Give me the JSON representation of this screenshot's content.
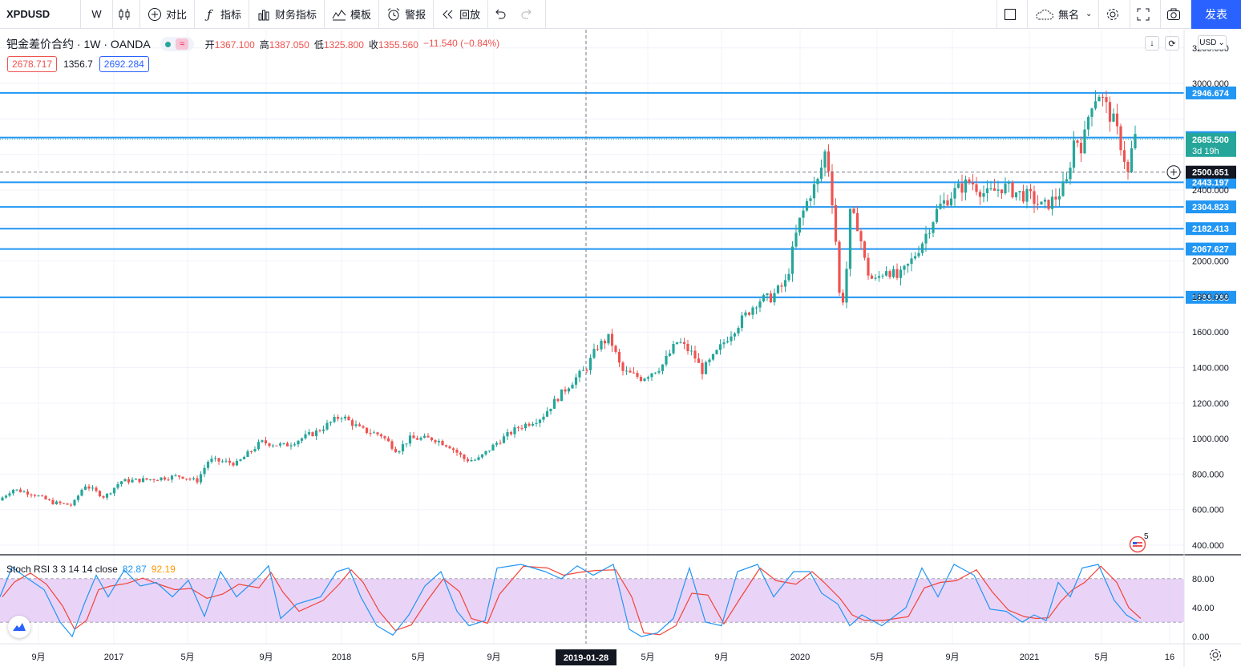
{
  "toolbar": {
    "symbol": "XPDUSD",
    "interval": "W",
    "compare": "对比",
    "indicators": "指标",
    "financials": "财务指标",
    "templates": "模板",
    "alert": "警报",
    "replay": "回放",
    "layout_name": "無名",
    "publish": "发表"
  },
  "legend": {
    "name": "钯金差价合约 · 1W · OANDA",
    "open_label": "开",
    "open": "1367.100",
    "high_label": "高",
    "high": "1387.050",
    "low_label": "低",
    "low": "1325.800",
    "close_label": "收",
    "close": "1355.560",
    "change": "−11.540 (−0.84%)",
    "bid": "2678.717",
    "spread": "1356.7",
    "ask": "2692.284"
  },
  "currency": "USD",
  "indicator": {
    "label": "Stoch RSI 3 3 14 14 close",
    "k_value": "82.87",
    "d_value": "92.19",
    "levels": {
      "upper": 80,
      "lower": 20
    }
  },
  "colors": {
    "up": "#26a69a",
    "down": "#ef5350",
    "hline": "#2196f3",
    "stoch_k": "#2196f3",
    "stoch_d": "#f44336",
    "band": "#e1c5f5"
  },
  "alert_count": "5",
  "crosshair_date": "2019-01-28",
  "chart_data": {
    "type": "candlestick",
    "price_axis": {
      "labels": [
        "400.000",
        "600.000",
        "800.000",
        "1000.000",
        "1200.000",
        "1400.000",
        "1600.000",
        "1800.000",
        "2000.000",
        "2400.000",
        "3000.000",
        "3200.000"
      ],
      "range": [
        300,
        3260
      ]
    },
    "time_axis": [
      "9月",
      "2017",
      "5月",
      "9月",
      "2018",
      "5月",
      "9月",
      "2019-01-28",
      "5月",
      "9月",
      "2020",
      "5月",
      "9月",
      "2021",
      "5月",
      "16"
    ],
    "horizontal_lines": [
      "2946.674",
      "2694.930",
      "2443.197",
      "2304.823",
      "2182.413",
      "2067.627",
      "1795.786"
    ],
    "current_price": {
      "value": "2685.500",
      "countdown": "3d 19h"
    },
    "crosshair_price": "2500.651",
    "stoch_axis": [
      "80.00",
      "40.00",
      "0.00"
    ],
    "trend": [
      [
        0,
        640
      ],
      [
        20,
        715
      ],
      [
        45,
        690
      ],
      [
        70,
        640
      ],
      [
        95,
        625
      ],
      [
        110,
        740
      ],
      [
        135,
        670
      ],
      [
        155,
        760
      ],
      [
        190,
        770
      ],
      [
        230,
        790
      ],
      [
        250,
        760
      ],
      [
        265,
        880
      ],
      [
        300,
        860
      ],
      [
        330,
        980
      ],
      [
        360,
        960
      ],
      [
        400,
        1040
      ],
      [
        430,
        1130
      ],
      [
        455,
        1050
      ],
      [
        480,
        1020
      ],
      [
        500,
        930
      ],
      [
        515,
        1000
      ],
      [
        545,
        1000
      ],
      [
        565,
        960
      ],
      [
        585,
        880
      ],
      [
        600,
        880
      ],
      [
        625,
        980
      ],
      [
        650,
        1060
      ],
      [
        680,
        1120
      ],
      [
        700,
        1230
      ],
      [
        720,
        1330
      ],
      [
        735,
        1390
      ],
      [
        750,
        1520
      ],
      [
        765,
        1570
      ],
      [
        780,
        1380
      ],
      [
        805,
        1340
      ],
      [
        830,
        1410
      ],
      [
        850,
        1550
      ],
      [
        870,
        1470
      ],
      [
        880,
        1380
      ],
      [
        895,
        1460
      ],
      [
        910,
        1560
      ],
      [
        930,
        1670
      ],
      [
        950,
        1780
      ],
      [
        965,
        1790
      ],
      [
        985,
        1880
      ],
      [
        1000,
        2200
      ],
      [
        1015,
        2380
      ],
      [
        1025,
        2450
      ],
      [
        1035,
        2640
      ],
      [
        1045,
        2250
      ],
      [
        1052,
        1780
      ],
      [
        1058,
        1790
      ],
      [
        1065,
        2260
      ],
      [
        1075,
        2200
      ],
      [
        1085,
        1950
      ],
      [
        1095,
        1880
      ],
      [
        1110,
        1960
      ],
      [
        1125,
        1900
      ],
      [
        1140,
        1990
      ],
      [
        1155,
        2110
      ],
      [
        1175,
        2300
      ],
      [
        1195,
        2390
      ],
      [
        1215,
        2450
      ],
      [
        1235,
        2370
      ],
      [
        1255,
        2420
      ],
      [
        1275,
        2380
      ],
      [
        1290,
        2360
      ],
      [
        1305,
        2300
      ],
      [
        1320,
        2350
      ],
      [
        1335,
        2440
      ],
      [
        1345,
        2700
      ],
      [
        1355,
        2640
      ],
      [
        1365,
        2890
      ],
      [
        1375,
        2950
      ],
      [
        1385,
        2860
      ],
      [
        1395,
        2770
      ],
      [
        1405,
        2620
      ],
      [
        1412,
        2480
      ],
      [
        1418,
        2690
      ]
    ],
    "stoch_k_trend": [
      [
        0,
        55
      ],
      [
        15,
        96
      ],
      [
        35,
        80
      ],
      [
        55,
        65
      ],
      [
        75,
        20
      ],
      [
        90,
        0
      ],
      [
        105,
        45
      ],
      [
        120,
        85
      ],
      [
        135,
        55
      ],
      [
        155,
        92
      ],
      [
        175,
        70
      ],
      [
        195,
        75
      ],
      [
        215,
        55
      ],
      [
        235,
        78
      ],
      [
        255,
        28
      ],
      [
        275,
        90
      ],
      [
        295,
        55
      ],
      [
        320,
        80
      ],
      [
        335,
        98
      ],
      [
        350,
        25
      ],
      [
        370,
        45
      ],
      [
        400,
        55
      ],
      [
        420,
        90
      ],
      [
        435,
        95
      ],
      [
        450,
        55
      ],
      [
        470,
        15
      ],
      [
        490,
        2
      ],
      [
        510,
        30
      ],
      [
        530,
        70
      ],
      [
        550,
        90
      ],
      [
        570,
        35
      ],
      [
        585,
        15
      ],
      [
        605,
        22
      ],
      [
        620,
        95
      ],
      [
        650,
        100
      ],
      [
        680,
        90
      ],
      [
        700,
        80
      ],
      [
        720,
        98
      ],
      [
        740,
        85
      ],
      [
        765,
        100
      ],
      [
        785,
        10
      ],
      [
        800,
        0
      ],
      [
        820,
        5
      ],
      [
        840,
        25
      ],
      [
        860,
        95
      ],
      [
        880,
        20
      ],
      [
        900,
        15
      ],
      [
        920,
        90
      ],
      [
        945,
        100
      ],
      [
        965,
        55
      ],
      [
        990,
        90
      ],
      [
        1010,
        90
      ],
      [
        1025,
        60
      ],
      [
        1045,
        45
      ],
      [
        1060,
        15
      ],
      [
        1075,
        30
      ],
      [
        1100,
        15
      ],
      [
        1130,
        40
      ],
      [
        1150,
        95
      ],
      [
        1170,
        55
      ],
      [
        1190,
        100
      ],
      [
        1215,
        85
      ],
      [
        1235,
        38
      ],
      [
        1255,
        35
      ],
      [
        1275,
        20
      ],
      [
        1290,
        30
      ],
      [
        1305,
        22
      ],
      [
        1320,
        75
      ],
      [
        1335,
        55
      ],
      [
        1350,
        95
      ],
      [
        1370,
        100
      ],
      [
        1390,
        50
      ],
      [
        1405,
        30
      ],
      [
        1420,
        20
      ]
    ]
  }
}
